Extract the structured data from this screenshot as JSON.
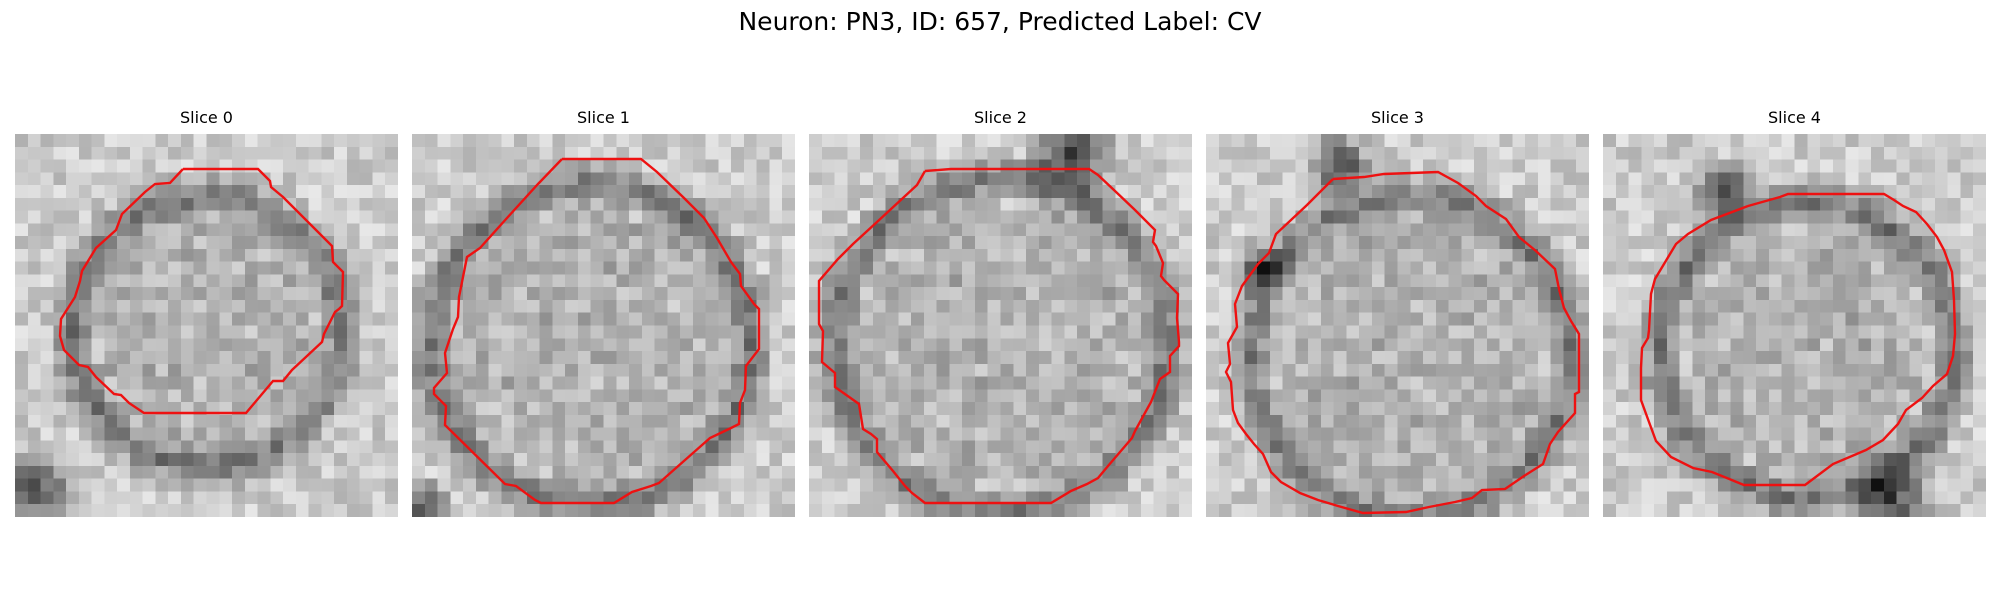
{
  "figure": {
    "title": "Neuron: PN3, ID: 657, Predicted Label: CV"
  },
  "colors": {
    "contour": "#ee1111",
    "colormap": "gray"
  },
  "panels": [
    {
      "title": "Slice 0"
    },
    {
      "title": "Slice 1"
    },
    {
      "title": "Slice 2"
    },
    {
      "title": "Slice 3"
    },
    {
      "title": "Slice 4"
    }
  ]
}
